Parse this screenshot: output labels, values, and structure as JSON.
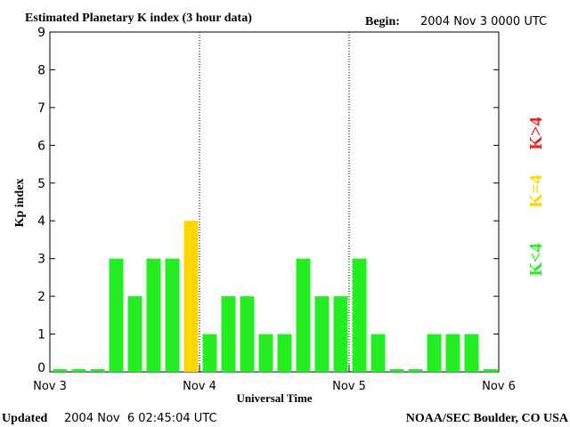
{
  "header": {
    "title": "Estimated Planetary K index (3 hour data)",
    "begin_label": "Begin:",
    "begin_value": "2004 Nov 3 0000 UTC"
  },
  "footer": {
    "updated_label": "Updated",
    "updated_value": "2004 Nov  6 02:45:04 UTC",
    "source": "NOAA/SEC Boulder, CO USA"
  },
  "legend": {
    "items": [
      {
        "label": "K<4",
        "color": "#22ee22"
      },
      {
        "label": "K=4",
        "color": "#ffd700"
      },
      {
        "label": "K>4",
        "color": "#ee2222"
      }
    ]
  },
  "chart_data": {
    "type": "bar",
    "xlabel": "Universal Time",
    "ylabel": "Kp index",
    "ylim": [
      0,
      9
    ],
    "yticks": [
      "0",
      "1",
      "2",
      "3",
      "4",
      "5",
      "6",
      "7",
      "8",
      "9"
    ],
    "xticks": [
      "Nov 3",
      "Nov 4",
      "Nov 5",
      "Nov 6"
    ],
    "day_separators": [
      1,
      2
    ],
    "values": [
      0,
      0,
      0,
      3,
      2,
      3,
      3,
      4,
      1,
      2,
      2,
      1,
      1,
      3,
      2,
      2,
      3,
      1,
      0,
      0,
      1,
      1,
      1,
      0
    ],
    "colors": {
      "low": "#22ee22",
      "equal": "#ffd700",
      "high": "#ee2222"
    }
  }
}
